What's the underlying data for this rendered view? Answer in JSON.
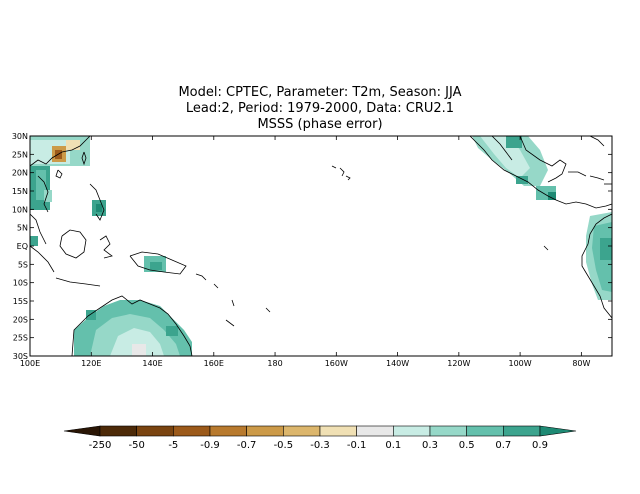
{
  "title": {
    "line1": "Model: CPTEC, Parameter: T2m, Season: JJA",
    "line2": "Lead:2, Period: 1979-2000, Data: CRU2.1",
    "line3": "MSSS (phase error)"
  },
  "map": {
    "lon_range": [
      "100E",
      "70W"
    ],
    "lat_range": [
      "30S",
      "30N"
    ],
    "lon_ticks": [
      "100E",
      "120E",
      "140E",
      "160E",
      "180",
      "160W",
      "140W",
      "120W",
      "100W",
      "80W"
    ],
    "lat_ticks": [
      "30N",
      "25N",
      "20N",
      "15N",
      "10N",
      "5N",
      "EQ",
      "5S",
      "10S",
      "15S",
      "20S",
      "25S",
      "30S"
    ]
  },
  "colorbar": {
    "labels": [
      "-250",
      "-50",
      "-5",
      "-0.9",
      "-0.7",
      "-0.5",
      "-0.3",
      "-0.1",
      "0.1",
      "0.3",
      "0.5",
      "0.7",
      "0.9"
    ],
    "colors": [
      "#2a1605",
      "#4d2a08",
      "#7a4410",
      "#9c5a1a",
      "#b87a2e",
      "#cc9a48",
      "#dcb66c",
      "#f0e0b4",
      "#e8e8e8",
      "#c8ece4",
      "#96d8c8",
      "#64c0ac",
      "#3ca48e",
      "#1e8a74"
    ]
  }
}
